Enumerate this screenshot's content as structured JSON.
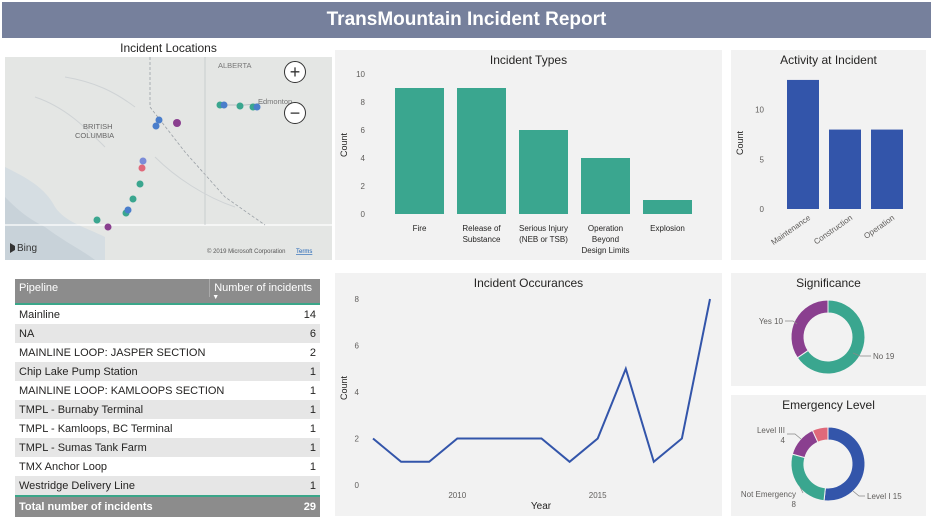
{
  "header": {
    "title": "TransMountain Incident Report"
  },
  "map": {
    "title": "Incident Locations",
    "region_labels": [
      "ALBERTA",
      "BRITISH",
      "COLUMBIA",
      "Edmonton"
    ],
    "zoom_in_label": "+",
    "zoom_out_label": "−",
    "brand": "Bing",
    "copyright": "© 2019 Microsoft Corporation",
    "terms": "Terms"
  },
  "incident_types": {
    "title": "Incident Types",
    "ylabel": "Count",
    "chart_data": {
      "type": "bar",
      "categories": [
        [
          "Fire"
        ],
        [
          "Release of",
          "Substance"
        ],
        [
          "Serious Injury",
          "(NEB or TSB)"
        ],
        [
          "Operation",
          "Beyond",
          "Design Limits"
        ],
        [
          "Explosion"
        ]
      ],
      "values": [
        9,
        9,
        6,
        4,
        1
      ],
      "ylim": [
        0,
        10
      ],
      "yticks": [
        "0",
        "2",
        "4",
        "6",
        "8",
        "10"
      ],
      "color": "#3aa68f"
    }
  },
  "activity": {
    "title": "Activity at Incident",
    "ylabel": "Count",
    "chart_data": {
      "type": "bar",
      "categories": [
        "Maintenance",
        "Construction",
        "Operation"
      ],
      "values": [
        13,
        8,
        8
      ],
      "ylim": [
        0,
        14
      ],
      "yticks": [
        "0",
        "5",
        "10"
      ],
      "color": "#3355aa"
    }
  },
  "table": {
    "columns": [
      "Pipeline",
      "Number of incidents"
    ],
    "rows": [
      [
        "Mainline",
        "14"
      ],
      [
        "NA",
        "6"
      ],
      [
        "MAINLINE LOOP: JASPER SECTION",
        "2"
      ],
      [
        "Chip Lake Pump Station",
        "1"
      ],
      [
        "MAINLINE LOOP: KAMLOOPS SECTION",
        "1"
      ],
      [
        "TMPL - Burnaby Terminal",
        "1"
      ],
      [
        "TMPL - Kamloops, BC Terminal",
        "1"
      ],
      [
        "TMPL - Sumas Tank Farm",
        "1"
      ],
      [
        "TMX Anchor Loop",
        "1"
      ],
      [
        "Westridge Delivery Line",
        "1"
      ]
    ],
    "total_label": "Total number of incidents",
    "total_value": "29"
  },
  "occurrences": {
    "title": "Incident Occurances",
    "xlabel": "Year",
    "ylabel": "Count",
    "chart_data": {
      "type": "line",
      "x": [
        2007,
        2008,
        2009,
        2010,
        2011,
        2012,
        2013,
        2014,
        2015,
        2016,
        2017,
        2018,
        2019
      ],
      "values": [
        2,
        1,
        1,
        2,
        2,
        2,
        2,
        1,
        2,
        5,
        1,
        2,
        8
      ],
      "ylim": [
        0,
        8
      ],
      "yticks": [
        "0",
        "2",
        "4",
        "6",
        "8"
      ],
      "xticks": [
        {
          "value": 2010,
          "label": "2010"
        },
        {
          "value": 2015,
          "label": "2015"
        }
      ],
      "color": "#3355aa"
    }
  },
  "significance": {
    "title": "Significance",
    "chart_data": {
      "type": "pie",
      "slices": [
        {
          "label": "No 19",
          "value": 19,
          "color": "#3aa68f"
        },
        {
          "label": "Yes 10",
          "value": 10,
          "color": "#8a3f8f"
        }
      ]
    }
  },
  "emergency": {
    "title": "Emergency Level",
    "chart_data": {
      "type": "pie",
      "slices": [
        {
          "label": "Level I 15",
          "value": 15,
          "color": "#3355aa"
        },
        {
          "label": "Not Emergency 8",
          "value": 8,
          "color": "#3aa68f"
        },
        {
          "label": "Level III 4",
          "value": 4,
          "color": "#8a3f8f"
        },
        {
          "label": "",
          "value": 2,
          "color": "#e0697a"
        }
      ]
    }
  }
}
